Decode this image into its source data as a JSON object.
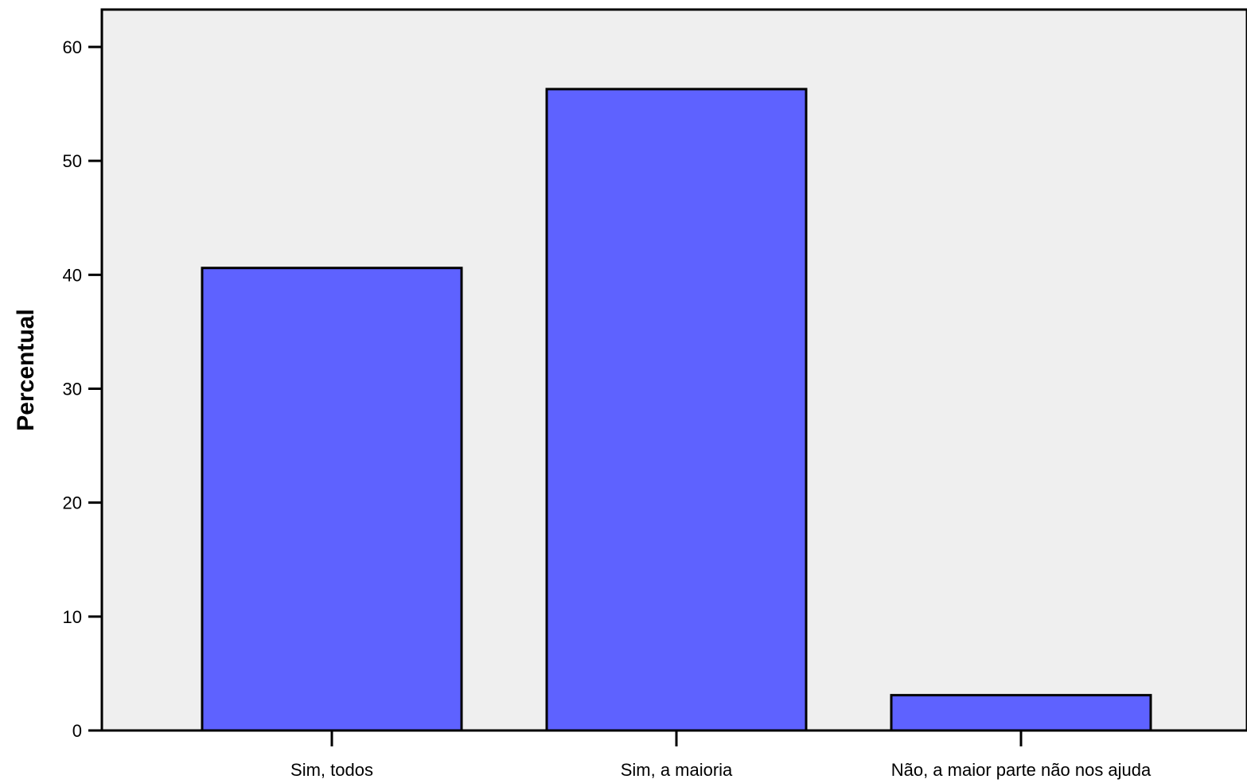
{
  "chart_data": {
    "type": "bar",
    "title": "",
    "xlabel": "",
    "ylabel": "Percentual",
    "categories": [
      "Sim, todos",
      "Sim, a maioria",
      "Não, a maior parte não nos ajuda"
    ],
    "values": [
      40.6,
      56.3,
      3.1
    ],
    "ylim": [
      0,
      60
    ],
    "yticks": [
      "0",
      "10",
      "20",
      "30",
      "40",
      "50",
      "60"
    ],
    "grid": false,
    "legend": "none",
    "colors": {
      "bar_fill": "#5e62ff",
      "bar_stroke": "#000000",
      "plot_background": "#efefef",
      "axis": "#000000"
    }
  }
}
